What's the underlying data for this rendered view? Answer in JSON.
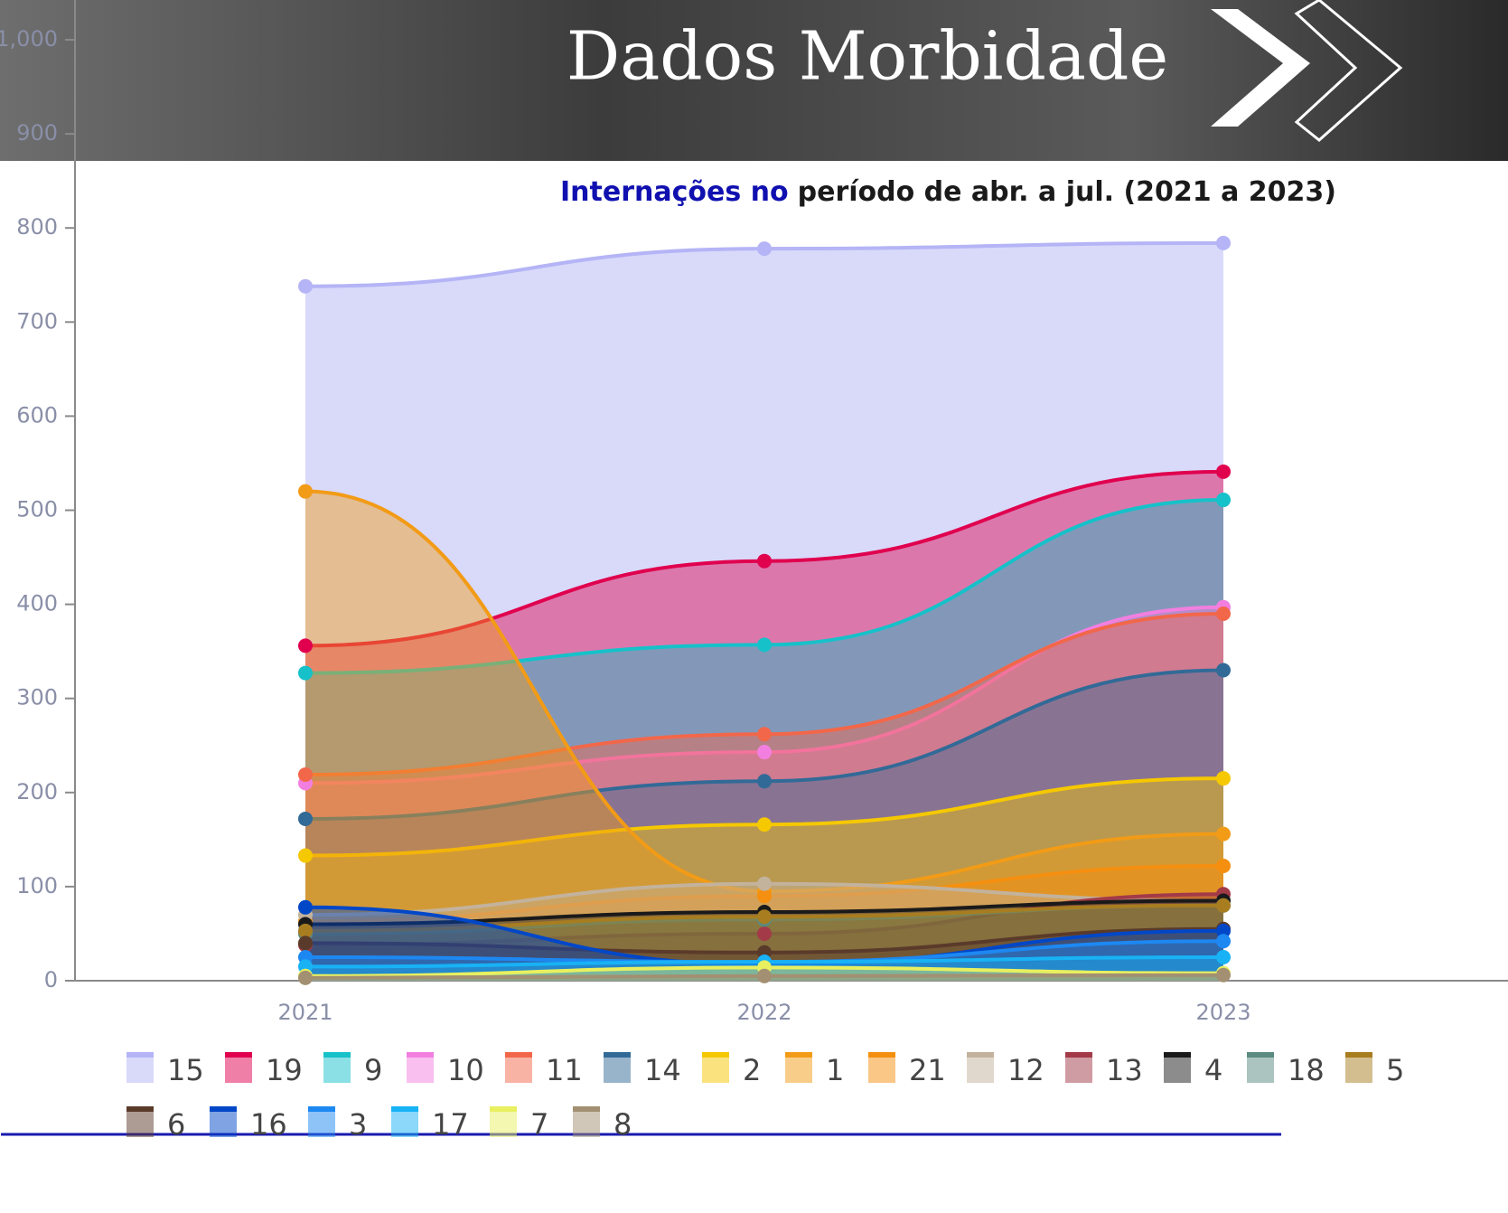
{
  "header": {
    "title": "Dados Morbidade"
  },
  "chart_data": {
    "type": "area",
    "title_parts": [
      "Internações no",
      "período de abr. a jul. (2021 a 2023)"
    ],
    "categories": [
      "2021",
      "2022",
      "2023"
    ],
    "ylim": [
      0,
      1000
    ],
    "yticks": [
      0,
      100,
      200,
      300,
      400,
      500,
      600,
      700,
      800,
      900,
      {
        "value": 1000,
        "label": "1,000"
      }
    ],
    "legend": "bottom",
    "series": [
      {
        "name": "15",
        "color": "#b4b4f6",
        "values": [
          738,
          778,
          784
        ]
      },
      {
        "name": "19",
        "color": "#e0004e",
        "values": [
          356,
          446,
          541
        ]
      },
      {
        "name": "9",
        "color": "#16c1c9",
        "values": [
          327,
          357,
          511
        ]
      },
      {
        "name": "10",
        "color": "#f27fe0",
        "values": [
          210,
          243,
          397
        ]
      },
      {
        "name": "11",
        "color": "#f2674a",
        "values": [
          219,
          262,
          390
        ]
      },
      {
        "name": "14",
        "color": "#326a97",
        "values": [
          172,
          212,
          330
        ]
      },
      {
        "name": "2",
        "color": "#f5c800",
        "values": [
          133,
          166,
          215
        ]
      },
      {
        "name": "1",
        "color": "#f29b16",
        "values": [
          520,
          95,
          156
        ]
      },
      {
        "name": "21",
        "color": "#f58f10",
        "values": [
          63,
          90,
          122
        ]
      },
      {
        "name": "12",
        "color": "#c3b29c",
        "values": [
          70,
          103,
          85
        ]
      },
      {
        "name": "13",
        "color": "#a23a48",
        "values": [
          38,
          50,
          92
        ]
      },
      {
        "name": "4",
        "color": "#1a1a1a",
        "values": [
          60,
          73,
          85
        ]
      },
      {
        "name": "18",
        "color": "#5a8a80",
        "values": [
          50,
          65,
          80
        ]
      },
      {
        "name": "5",
        "color": "#a87d20",
        "values": [
          53,
          68,
          80
        ]
      },
      {
        "name": "6",
        "color": "#5a3a2a",
        "values": [
          40,
          30,
          55
        ]
      },
      {
        "name": "16",
        "color": "#0047c8",
        "values": [
          78,
          17,
          53
        ]
      },
      {
        "name": "3",
        "color": "#1d88f2",
        "values": [
          25,
          20,
          42
        ]
      },
      {
        "name": "17",
        "color": "#18b2f5",
        "values": [
          15,
          20,
          25
        ]
      },
      {
        "name": "7",
        "color": "#e8f060",
        "values": [
          5,
          14,
          8
        ]
      },
      {
        "name": "8",
        "color": "#a39072",
        "values": [
          3,
          5,
          6
        ]
      }
    ]
  }
}
